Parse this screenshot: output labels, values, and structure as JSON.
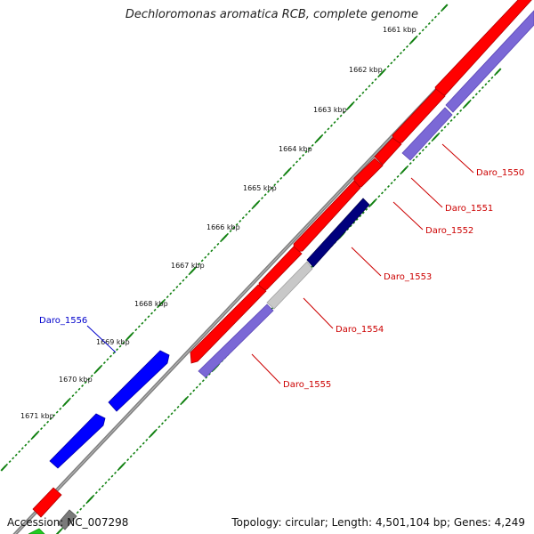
{
  "title": "Dechloromonas aromatica RCB, complete genome",
  "footer": {
    "accession_label": "Accession:",
    "accession": "NC_007298",
    "topology_text": "Topology: circular; Length: 4,501,104 bp; Genes: 4,249"
  },
  "colors": {
    "backbone": "#808080",
    "forward_gene": "#ff0000",
    "reverse_gene": "#7b68d6",
    "reverse_gene_dark": "#00007d",
    "pseudo_gene": "#c0c0c0",
    "other_gene": "#0000ff",
    "tick": "#108010",
    "forward_label": "#cc0000",
    "other_label": "#0000cc"
  },
  "kbp_labels": [
    "1661 kbp",
    "1662 kbp",
    "1663 kbp",
    "1664 kbp",
    "1665 kbp",
    "1666 kbp",
    "1667 kbp",
    "1668 kbp",
    "1669 kbp",
    "1670 kbp",
    "1671 kbp"
  ],
  "gene_labels": [
    "Daro_1550",
    "Daro_1551",
    "Daro_1552",
    "Daro_1553",
    "Daro_1554",
    "Daro_1555",
    "Daro_1556"
  ]
}
